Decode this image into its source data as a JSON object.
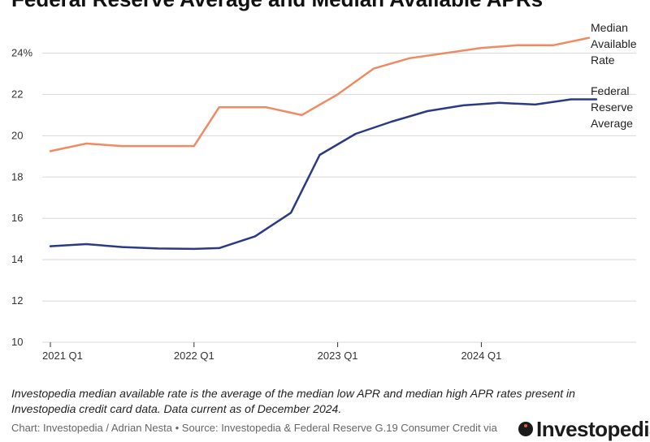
{
  "chart_data": {
    "type": "line",
    "title": "Federal Reserve Average and Median Available APRs",
    "xlabel": "",
    "ylabel": "",
    "ylim": [
      10,
      25
    ],
    "yticks": [
      "24%",
      "22",
      "20",
      "18",
      "16",
      "14",
      "12",
      "10"
    ],
    "ytick_values": [
      24,
      22,
      20,
      18,
      16,
      14,
      12,
      10
    ],
    "x_tick_labels": [
      "2021 Q1",
      "2022 Q1",
      "2023 Q1",
      "2024 Q1"
    ],
    "x_tick_indices": [
      0,
      4,
      8,
      12
    ],
    "categories": [
      "2021 Q1",
      "2021 Q2",
      "2021 Q3",
      "2021 Q4",
      "2022 Q1",
      "2022 Q2",
      "2022 Q3",
      "2022 Q4",
      "2023 Q1",
      "2023 Q2",
      "2023 Q3",
      "2023 Q4",
      "2024 Q1",
      "2024 Q2",
      "2024 Q3",
      "2024 Q4"
    ],
    "series": [
      {
        "name": "Median Available Rate",
        "label_lines": [
          "Median",
          "Available",
          "Rate"
        ],
        "color": "#f08a62",
        "x": [
          0,
          1,
          2,
          3,
          4,
          4.7,
          5,
          6,
          7,
          8,
          9,
          10,
          11,
          12,
          13,
          14,
          15
        ],
        "values": [
          19.25,
          19.62,
          19.5,
          19.5,
          19.5,
          21.38,
          21.38,
          21.38,
          21.0,
          22.0,
          23.25,
          23.75,
          24.0,
          24.25,
          24.38,
          24.38,
          24.74
        ]
      },
      {
        "name": "Federal Reserve Average",
        "label_lines": [
          "Federal",
          "Reserve",
          "Average"
        ],
        "color": "#2b3a84",
        "x": [
          0,
          1,
          2,
          3,
          4,
          4.7,
          5.7,
          6.7,
          7.5,
          8.5,
          9.5,
          10.5,
          11.5,
          12.5,
          13.5,
          14.5,
          15.2
        ],
        "values": [
          14.65,
          14.75,
          14.61,
          14.54,
          14.52,
          14.56,
          15.13,
          16.27,
          19.07,
          20.09,
          20.68,
          21.19,
          21.47,
          21.59,
          21.51,
          21.76,
          21.76
        ]
      }
    ]
  },
  "footer": {
    "note": "Investopedia median available rate is the average of the median low APR and median high APR rates present in Investopedia credit card data. Data current as of December 2024.",
    "source": "Chart: Investopedia / Adrian Nesta • Source: Investopedia & Federal Reserve G.19 Consumer Credit via",
    "logo": "Investopedia"
  }
}
